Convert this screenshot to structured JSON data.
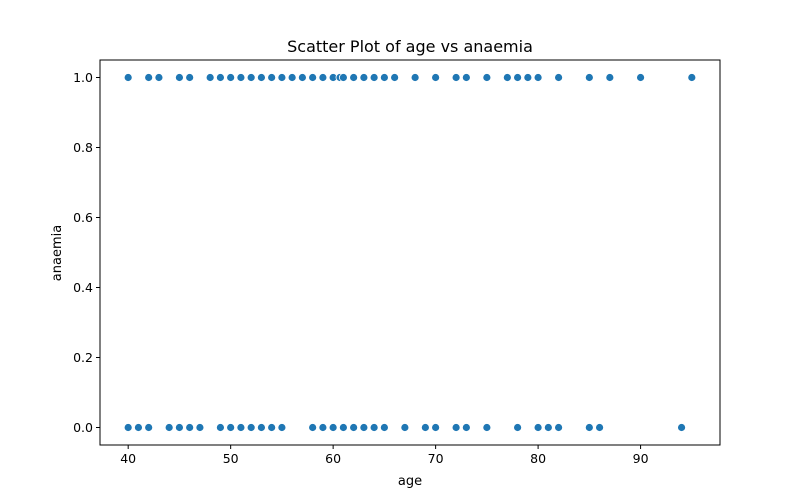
{
  "chart_data": {
    "type": "scatter",
    "title": "Scatter Plot of age vs anaemia",
    "xlabel": "age",
    "ylabel": "anaemia",
    "xlim": [
      37.25,
      97.75
    ],
    "ylim": [
      -0.05,
      1.05
    ],
    "xticks": [
      40,
      50,
      60,
      70,
      80,
      90
    ],
    "yticks": [
      0.0,
      0.2,
      0.4,
      0.6,
      0.8,
      1.0
    ],
    "xtick_labels": [
      "40",
      "50",
      "60",
      "70",
      "80",
      "90"
    ],
    "ytick_labels": [
      "0.0",
      "0.2",
      "0.4",
      "0.6",
      "0.8",
      "1.0"
    ],
    "grid": false,
    "marker_color": "#1f77b4",
    "series": [
      {
        "points": [
          [
            40,
            1
          ],
          [
            42,
            1
          ],
          [
            43,
            1
          ],
          [
            45,
            1
          ],
          [
            46,
            1
          ],
          [
            48,
            1
          ],
          [
            49,
            1
          ],
          [
            50,
            1
          ],
          [
            51,
            1
          ],
          [
            52,
            1
          ],
          [
            53,
            1
          ],
          [
            54,
            1
          ],
          [
            55,
            1
          ],
          [
            56,
            1
          ],
          [
            57,
            1
          ],
          [
            58,
            1
          ],
          [
            59,
            1
          ],
          [
            60,
            1
          ],
          [
            60.667,
            1
          ],
          [
            61,
            1
          ],
          [
            62,
            1
          ],
          [
            63,
            1
          ],
          [
            64,
            1
          ],
          [
            65,
            1
          ],
          [
            66,
            1
          ],
          [
            68,
            1
          ],
          [
            70,
            1
          ],
          [
            72,
            1
          ],
          [
            73,
            1
          ],
          [
            75,
            1
          ],
          [
            77,
            1
          ],
          [
            78,
            1
          ],
          [
            79,
            1
          ],
          [
            80,
            1
          ],
          [
            82,
            1
          ],
          [
            85,
            1
          ],
          [
            87,
            1
          ],
          [
            90,
            1
          ],
          [
            95,
            1
          ],
          [
            40,
            0
          ],
          [
            41,
            0
          ],
          [
            42,
            0
          ],
          [
            44,
            0
          ],
          [
            45,
            0
          ],
          [
            46,
            0
          ],
          [
            47,
            0
          ],
          [
            49,
            0
          ],
          [
            50,
            0
          ],
          [
            51,
            0
          ],
          [
            52,
            0
          ],
          [
            53,
            0
          ],
          [
            54,
            0
          ],
          [
            55,
            0
          ],
          [
            58,
            0
          ],
          [
            59,
            0
          ],
          [
            60,
            0
          ],
          [
            61,
            0
          ],
          [
            62,
            0
          ],
          [
            63,
            0
          ],
          [
            64,
            0
          ],
          [
            65,
            0
          ],
          [
            67,
            0
          ],
          [
            69,
            0
          ],
          [
            70,
            0
          ],
          [
            72,
            0
          ],
          [
            73,
            0
          ],
          [
            75,
            0
          ],
          [
            78,
            0
          ],
          [
            80,
            0
          ],
          [
            81,
            0
          ],
          [
            82,
            0
          ],
          [
            85,
            0
          ],
          [
            86,
            0
          ],
          [
            94,
            0
          ]
        ]
      }
    ]
  }
}
